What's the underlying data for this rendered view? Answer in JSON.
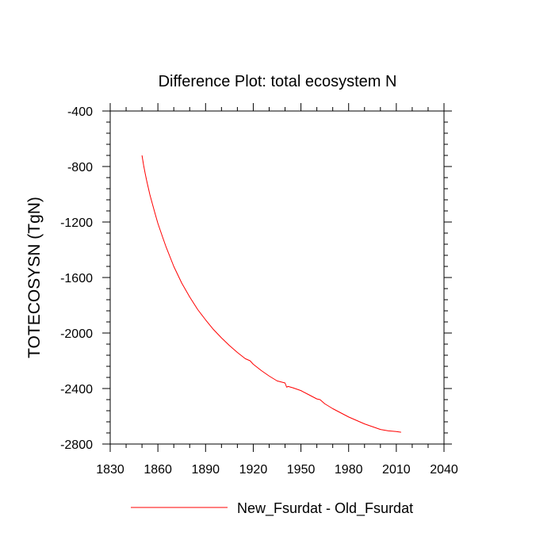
{
  "chart_data": {
    "type": "line",
    "title": "Difference Plot: total ecosystem N",
    "xlabel": "",
    "ylabel": "TOTECOSYSN  (TgN)",
    "xlim": [
      1830,
      2040
    ],
    "ylim": [
      -2800,
      -400
    ],
    "xticks": [
      1830,
      1860,
      1890,
      1920,
      1950,
      1980,
      2010,
      2040
    ],
    "yticks": [
      -400,
      -800,
      -1200,
      -1600,
      -2000,
      -2400,
      -2800
    ],
    "x_minor_step": 10,
    "y_minor_step": 80,
    "grid": false,
    "legend_placement": "bottom-center",
    "series": [
      {
        "name": "New_Fsurdat - Old_Fsurdat",
        "color": "#ff0000",
        "x": [
          1850,
          1851,
          1852,
          1853,
          1855,
          1858,
          1860,
          1863,
          1865,
          1870,
          1875,
          1880,
          1885,
          1890,
          1895,
          1900,
          1905,
          1910,
          1915,
          1918,
          1920,
          1925,
          1930,
          1935,
          1940,
          1941,
          1942,
          1945,
          1950,
          1955,
          1960,
          1962,
          1965,
          1970,
          1975,
          1980,
          1985,
          1990,
          1995,
          2000,
          2005,
          2010,
          2013
        ],
        "y": [
          -720,
          -790,
          -850,
          -905,
          -1005,
          -1130,
          -1210,
          -1310,
          -1375,
          -1520,
          -1640,
          -1740,
          -1830,
          -1905,
          -1975,
          -2035,
          -2090,
          -2140,
          -2185,
          -2200,
          -2225,
          -2270,
          -2310,
          -2345,
          -2360,
          -2390,
          -2385,
          -2395,
          -2415,
          -2445,
          -2475,
          -2480,
          -2510,
          -2545,
          -2575,
          -2605,
          -2630,
          -2655,
          -2675,
          -2695,
          -2705,
          -2710,
          -2715
        ]
      }
    ]
  }
}
